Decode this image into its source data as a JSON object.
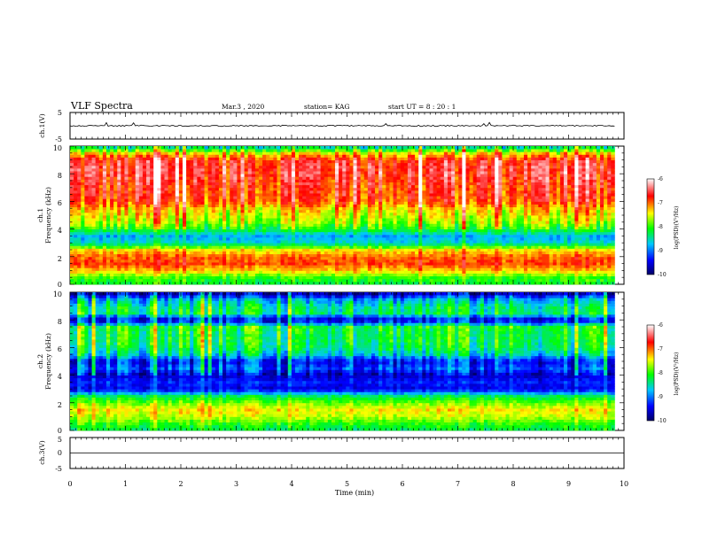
{
  "header": {
    "title": "VLF Spectra",
    "date": "Mar.3  , 2020",
    "station": "station= KAG",
    "start_ut": "start  UT =   8  : 20 : 1"
  },
  "panels": {
    "ch1_wave": {
      "ylabel": "ch.1(V)",
      "ytick_top": "5",
      "ytick_bottom": "-5"
    },
    "ch1_spec": {
      "ylabel_line1": "ch.1",
      "ylabel_line2": "Frequency  (kHz)",
      "yticks": [
        "0",
        "2",
        "4",
        "6",
        "8",
        "10"
      ]
    },
    "ch2_spec": {
      "ylabel_line1": "ch.2",
      "ylabel_line2": "Frequency  (kHz)",
      "yticks": [
        "0",
        "2",
        "4",
        "6",
        "8",
        "10"
      ]
    },
    "ch3_wave": {
      "ylabel": "ch.3(V)",
      "ytick_top": "5",
      "ytick_mid": "0",
      "ytick_bottom": "-5"
    }
  },
  "colorbars": [
    {
      "label": "log(PSD)(V²/Hz)",
      "ticks": [
        "-6",
        "-7",
        "-8",
        "-9",
        "-10"
      ]
    },
    {
      "label": "log(PSD)(V²/Hz)",
      "ticks": [
        "-6",
        "-7",
        "-8",
        "-9",
        "-10"
      ]
    }
  ],
  "xaxis": {
    "label": "Time  (min)",
    "ticks": [
      "0",
      "1",
      "2",
      "3",
      "4",
      "5",
      "6",
      "7",
      "8",
      "9",
      "10"
    ]
  },
  "chart_data": {
    "type": "heatmap",
    "title": "VLF Spectra",
    "xlabel": "Time  (min)",
    "x_range": [
      0,
      10
    ],
    "data_end_min": 9.83,
    "ylabel": "Frequency  (kHz)",
    "y_range_khz": [
      0,
      10
    ],
    "color_scale": "log(PSD)(V²/Hz)",
    "color_range": [
      -10,
      -6
    ],
    "colormap": [
      "#000066",
      "#0000ff",
      "#00c8ff",
      "#00ff00",
      "#ffff00",
      "#ff0000",
      "#ffffff"
    ],
    "series": [
      {
        "name": "ch.1",
        "band_khz": [
          0,
          0.5,
          1,
          1.5,
          2,
          2.5,
          3,
          3.5,
          4,
          4.5,
          5,
          5.5,
          6,
          6.5,
          7,
          7.5,
          8,
          8.5,
          9,
          9.5,
          10
        ],
        "typical_log_psd": [
          -8.2,
          -8.0,
          -7.3,
          -6.9,
          -7.0,
          -7.4,
          -8.6,
          -8.8,
          -8.1,
          -7.7,
          -7.5,
          -7.3,
          -6.9,
          -6.8,
          -6.8,
          -6.7,
          -6.6,
          -6.6,
          -6.7,
          -7.4,
          -8.6
        ]
      },
      {
        "name": "ch.2",
        "band_khz": [
          0,
          0.5,
          1,
          1.5,
          2,
          2.5,
          3,
          3.5,
          4,
          4.5,
          5,
          5.5,
          6,
          6.5,
          7,
          7.5,
          8,
          8.5,
          9,
          9.5,
          10
        ],
        "typical_log_psd": [
          -8.3,
          -8.0,
          -7.6,
          -7.4,
          -7.8,
          -8.3,
          -9.5,
          -9.3,
          -9.6,
          -9.1,
          -9.4,
          -8.6,
          -8.3,
          -8.2,
          -8.2,
          -8.1,
          -9.6,
          -8.3,
          -8.4,
          -8.8,
          -9.8
        ]
      }
    ],
    "ch1_waveform_ylim": [
      -5,
      5
    ],
    "ch3_waveform_ylim": [
      -5,
      5
    ]
  }
}
